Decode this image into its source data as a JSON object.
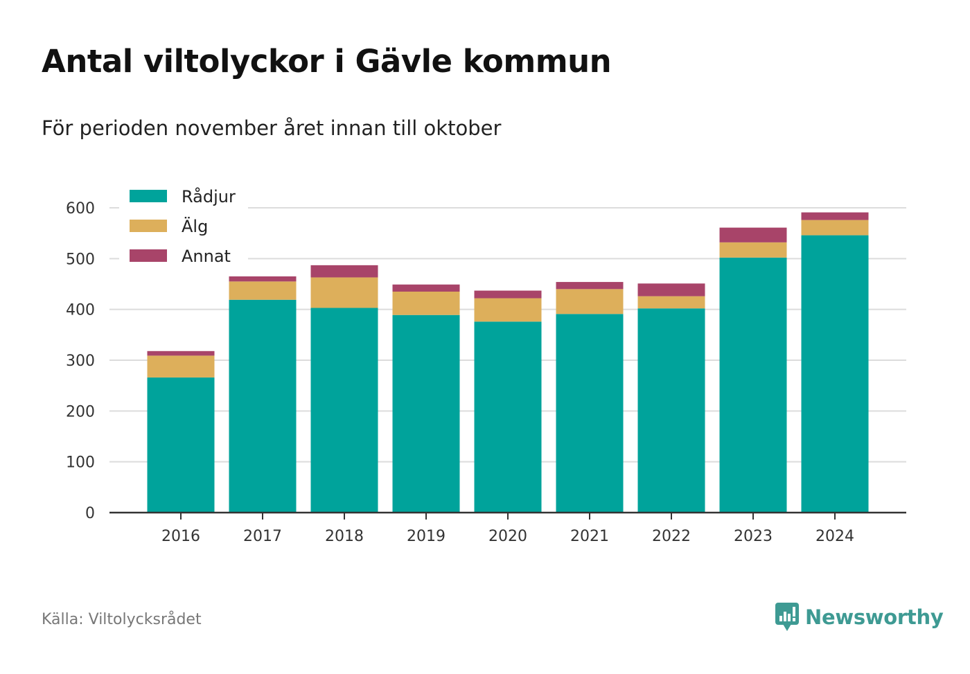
{
  "title": "Antal viltolyckor i Gävle kommun",
  "subtitle": "För perioden november året innan till oktober",
  "source": "Källa: Viltolycksrådet",
  "brand": {
    "name": "Newsworthy",
    "icon": "newsworthy-logo-icon",
    "color": "#3e9a93"
  },
  "chart_data": {
    "type": "bar",
    "stacked": true,
    "categories": [
      "2016",
      "2017",
      "2018",
      "2019",
      "2020",
      "2021",
      "2022",
      "2023",
      "2024"
    ],
    "series": [
      {
        "name": "Rådjur",
        "color": "#00a39b",
        "values": [
          266,
          419,
          403,
          389,
          376,
          391,
          402,
          502,
          546
        ]
      },
      {
        "name": "Älg",
        "color": "#ddaf5b",
        "values": [
          43,
          36,
          60,
          46,
          46,
          49,
          24,
          30,
          30
        ]
      },
      {
        "name": "Annat",
        "color": "#a84469",
        "values": [
          9,
          10,
          24,
          14,
          15,
          14,
          25,
          29,
          15
        ]
      }
    ],
    "ylim": [
      0,
      600
    ],
    "yticks": [
      0,
      100,
      200,
      300,
      400,
      500,
      600
    ],
    "grid": true,
    "legend": "top-left"
  }
}
